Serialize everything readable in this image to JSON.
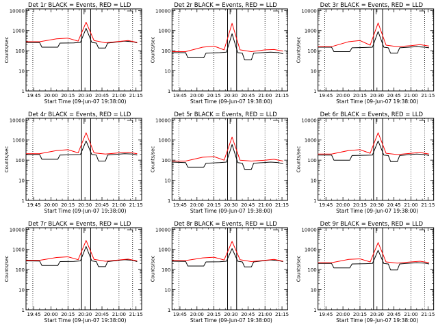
{
  "chart_data": [
    {
      "type": "line",
      "title": "Det 1r BLACK = Events, RED = LLD",
      "xlabel": "Start Time (09-Jun-07 19:38:00)",
      "ylabel": "Counts/sec",
      "yscale": "log",
      "ylim": [
        1,
        12000
      ],
      "xlim": [
        "19:38",
        "21:20"
      ],
      "x_ticks": [
        "19:45",
        "20:00",
        "20:15",
        "20:30",
        "20:45",
        "21:00",
        "21:15"
      ],
      "y_ticks": [
        "1",
        "10",
        "100",
        "1000",
        "10000"
      ],
      "dotted_lines": [
        "19:44",
        "20:15",
        "21:00",
        "21:12"
      ],
      "solid_lines": [
        "20:27",
        "20:35"
      ],
      "flare_peak": "20:31",
      "series": [
        {
          "color": "#000000",
          "x": [
            "19:38",
            "19:50",
            "19:52",
            "20:06",
            "20:08",
            "20:20",
            "20:26",
            "20:31",
            "20:36",
            "20:40",
            "20:42",
            "20:48",
            "20:50",
            "21:05",
            "21:12",
            "21:16"
          ],
          "y": [
            260,
            255,
            150,
            150,
            240,
            245,
            260,
            1300,
            260,
            240,
            135,
            135,
            240,
            300,
            280,
            245
          ]
        },
        {
          "color": "#ff0000",
          "x": [
            "19:38",
            "19:50",
            "20:05",
            "20:15",
            "20:24",
            "20:31",
            "20:38",
            "20:48",
            "21:00",
            "21:08",
            "21:16"
          ],
          "y": [
            280,
            280,
            390,
            420,
            300,
            2600,
            320,
            250,
            290,
            320,
            260
          ]
        }
      ]
    },
    {
      "type": "line",
      "title": "Det 2r BLACK = Events, RED = LLD",
      "xlabel": "Start Time (09-Jun-07 19:38:00)",
      "ylabel": "Counts/sec",
      "yscale": "log",
      "ylim": [
        1,
        12000
      ],
      "xlim": [
        "19:38",
        "21:20"
      ],
      "x_ticks": [
        "19:45",
        "20:00",
        "20:15",
        "20:30",
        "20:45",
        "21:00",
        "21:15"
      ],
      "y_ticks": [
        "1",
        "10",
        "100",
        "1000",
        "10000"
      ],
      "dotted_lines": [
        "19:44",
        "20:15",
        "21:00",
        "21:12"
      ],
      "solid_lines": [
        "20:27",
        "20:35"
      ],
      "flare_peak": "20:31",
      "series": [
        {
          "color": "#000000",
          "x": [
            "19:38",
            "19:50",
            "19:52",
            "20:06",
            "20:08",
            "20:20",
            "20:26",
            "20:31",
            "20:36",
            "20:40",
            "20:42",
            "20:48",
            "20:50",
            "21:05",
            "21:12",
            "21:16"
          ],
          "y": [
            80,
            80,
            45,
            45,
            75,
            80,
            85,
            700,
            80,
            75,
            35,
            35,
            75,
            85,
            80,
            70
          ]
        },
        {
          "color": "#ff0000",
          "x": [
            "19:38",
            "19:50",
            "20:05",
            "20:15",
            "20:24",
            "20:31",
            "20:38",
            "20:48",
            "21:00",
            "21:08",
            "21:16"
          ],
          "y": [
            90,
            90,
            150,
            170,
            110,
            2300,
            110,
            90,
            110,
            115,
            95
          ]
        }
      ]
    },
    {
      "type": "line",
      "title": "Det 3r BLACK = Events, RED = LLD",
      "xlabel": "Start Time (09-Jun-07 19:38:00)",
      "ylabel": "Counts/sec",
      "yscale": "log",
      "ylim": [
        1,
        12000
      ],
      "xlim": [
        "19:38",
        "21:20"
      ],
      "x_ticks": [
        "19:45",
        "20:00",
        "20:15",
        "20:30",
        "20:45",
        "21:00",
        "21:15"
      ],
      "y_ticks": [
        "1",
        "10",
        "100",
        "1000",
        "10000"
      ],
      "dotted_lines": [
        "19:44",
        "20:15",
        "21:00",
        "21:12"
      ],
      "solid_lines": [
        "20:27",
        "20:35"
      ],
      "flare_peak": "20:31",
      "series": [
        {
          "color": "#000000",
          "x": [
            "19:38",
            "19:50",
            "19:52",
            "20:06",
            "20:08",
            "20:20",
            "20:26",
            "20:31",
            "20:36",
            "20:40",
            "20:42",
            "20:48",
            "20:50",
            "21:05",
            "21:12",
            "21:16"
          ],
          "y": [
            150,
            150,
            90,
            90,
            140,
            145,
            150,
            900,
            150,
            140,
            75,
            75,
            140,
            160,
            150,
            140
          ]
        },
        {
          "color": "#ff0000",
          "x": [
            "19:38",
            "19:50",
            "20:05",
            "20:15",
            "20:24",
            "20:31",
            "20:38",
            "20:48",
            "21:00",
            "21:08",
            "21:16"
          ],
          "y": [
            160,
            160,
            280,
            320,
            190,
            2400,
            190,
            160,
            180,
            200,
            170
          ]
        }
      ]
    },
    {
      "type": "line",
      "title": "Det 4r BLACK = Events, RED = LLD",
      "xlabel": "Start Time (09-Jun-07 19:38:00)",
      "ylabel": "Counts/sec",
      "yscale": "log",
      "ylim": [
        1,
        12000
      ],
      "xlim": [
        "19:38",
        "21:20"
      ],
      "x_ticks": [
        "19:45",
        "20:00",
        "20:15",
        "20:30",
        "20:45",
        "21:00",
        "21:15"
      ],
      "y_ticks": [
        "1",
        "10",
        "100",
        "1000",
        "10000"
      ],
      "dotted_lines": [
        "19:44",
        "20:15",
        "21:00",
        "21:12"
      ],
      "solid_lines": [
        "20:27",
        "20:35"
      ],
      "flare_peak": "20:31",
      "series": [
        {
          "color": "#000000",
          "x": [
            "19:38",
            "19:50",
            "19:52",
            "20:06",
            "20:08",
            "20:20",
            "20:26",
            "20:31",
            "20:36",
            "20:40",
            "20:42",
            "20:48",
            "20:50",
            "21:05",
            "21:12",
            "21:16"
          ],
          "y": [
            190,
            190,
            110,
            110,
            180,
            185,
            190,
            900,
            190,
            180,
            90,
            90,
            180,
            210,
            200,
            180
          ]
        },
        {
          "color": "#ff0000",
          "x": [
            "19:38",
            "19:50",
            "20:05",
            "20:15",
            "20:24",
            "20:31",
            "20:38",
            "20:48",
            "21:00",
            "21:08",
            "21:16"
          ],
          "y": [
            210,
            210,
            300,
            330,
            230,
            2300,
            230,
            200,
            230,
            250,
            210
          ]
        }
      ]
    },
    {
      "type": "line",
      "title": "Det 5r BLACK = Events, RED = LLD",
      "xlabel": "Start Time (09-Jun-07 19:38:00)",
      "ylabel": "Counts/sec",
      "yscale": "log",
      "ylim": [
        1,
        12000
      ],
      "xlim": [
        "19:38",
        "21:20"
      ],
      "x_ticks": [
        "19:45",
        "20:00",
        "20:15",
        "20:30",
        "20:45",
        "21:00",
        "21:15"
      ],
      "y_ticks": [
        "1",
        "10",
        "100",
        "1000",
        "10000"
      ],
      "dotted_lines": [
        "19:44",
        "20:15",
        "21:00",
        "21:12"
      ],
      "solid_lines": [
        "20:27",
        "20:35"
      ],
      "flare_peak": "20:31",
      "series": [
        {
          "color": "#000000",
          "x": [
            "19:38",
            "19:50",
            "19:52",
            "20:06",
            "20:08",
            "20:20",
            "20:26",
            "20:31",
            "20:36",
            "20:40",
            "20:42",
            "20:48",
            "20:50",
            "21:05",
            "21:12",
            "21:16"
          ],
          "y": [
            80,
            75,
            45,
            45,
            70,
            75,
            80,
            600,
            75,
            70,
            35,
            35,
            70,
            80,
            75,
            65
          ]
        },
        {
          "color": "#ff0000",
          "x": [
            "19:38",
            "19:50",
            "20:05",
            "20:15",
            "20:24",
            "20:31",
            "20:38",
            "20:48",
            "21:00",
            "21:08",
            "21:16"
          ],
          "y": [
            90,
            90,
            140,
            150,
            100,
            1400,
            100,
            90,
            100,
            110,
            90
          ]
        }
      ]
    },
    {
      "type": "line",
      "title": "Det 6r BLACK = Events, RED = LLD",
      "xlabel": "Start Time (09-Jun-07 19:38:00)",
      "ylabel": "Counts/sec",
      "yscale": "log",
      "ylim": [
        1,
        12000
      ],
      "xlim": [
        "19:38",
        "21:20"
      ],
      "x_ticks": [
        "19:45",
        "20:00",
        "20:15",
        "20:30",
        "20:45",
        "21:00",
        "21:15"
      ],
      "y_ticks": [
        "1",
        "10",
        "100",
        "1000",
        "10000"
      ],
      "dotted_lines": [
        "19:44",
        "20:15",
        "21:00",
        "21:12"
      ],
      "solid_lines": [
        "20:27",
        "20:35"
      ],
      "flare_peak": "20:31",
      "series": [
        {
          "color": "#000000",
          "x": [
            "19:38",
            "19:50",
            "19:52",
            "20:06",
            "20:08",
            "20:20",
            "20:26",
            "20:31",
            "20:36",
            "20:40",
            "20:42",
            "20:48",
            "20:50",
            "21:05",
            "21:12",
            "21:16"
          ],
          "y": [
            180,
            180,
            100,
            100,
            170,
            175,
            180,
            900,
            180,
            170,
            85,
            85,
            170,
            200,
            190,
            170
          ]
        },
        {
          "color": "#ff0000",
          "x": [
            "19:38",
            "19:50",
            "20:05",
            "20:15",
            "20:24",
            "20:31",
            "20:38",
            "20:48",
            "21:00",
            "21:08",
            "21:16"
          ],
          "y": [
            200,
            200,
            300,
            330,
            220,
            2300,
            220,
            190,
            220,
            240,
            200
          ]
        }
      ]
    },
    {
      "type": "line",
      "title": "Det 7r BLACK = Events, RED = LLD",
      "xlabel": "Start Time (09-Jun-07 19:38:00)",
      "ylabel": "Counts/sec",
      "yscale": "log",
      "ylim": [
        1,
        12000
      ],
      "xlim": [
        "19:38",
        "21:20"
      ],
      "x_ticks": [
        "19:45",
        "20:00",
        "20:15",
        "20:30",
        "20:45",
        "21:00",
        "21:15"
      ],
      "y_ticks": [
        "1",
        "10",
        "100",
        "1000",
        "10000"
      ],
      "dotted_lines": [
        "19:44",
        "20:15",
        "21:00",
        "21:12"
      ],
      "solid_lines": [
        "20:27",
        "20:35"
      ],
      "flare_peak": "20:31",
      "series": [
        {
          "color": "#000000",
          "x": [
            "19:38",
            "19:50",
            "19:52",
            "20:06",
            "20:08",
            "20:20",
            "20:26",
            "20:31",
            "20:36",
            "20:40",
            "20:42",
            "20:48",
            "20:50",
            "21:05",
            "21:12",
            "21:16"
          ],
          "y": [
            270,
            265,
            160,
            160,
            250,
            255,
            270,
            1400,
            270,
            250,
            140,
            140,
            250,
            310,
            290,
            250
          ]
        },
        {
          "color": "#ff0000",
          "x": [
            "19:38",
            "19:50",
            "20:05",
            "20:15",
            "20:24",
            "20:31",
            "20:38",
            "20:48",
            "21:00",
            "21:08",
            "21:16"
          ],
          "y": [
            290,
            290,
            400,
            430,
            310,
            2800,
            320,
            260,
            300,
            330,
            270
          ]
        }
      ]
    },
    {
      "type": "line",
      "title": "Det 8r BLACK = Events, RED = LLD",
      "xlabel": "Start Time (09-Jun-07 19:38:00)",
      "ylabel": "Counts/sec",
      "yscale": "log",
      "ylim": [
        1,
        12000
      ],
      "xlim": [
        "19:38",
        "21:20"
      ],
      "x_ticks": [
        "19:45",
        "20:00",
        "20:15",
        "20:30",
        "20:45",
        "21:00",
        "21:15"
      ],
      "y_ticks": [
        "1",
        "10",
        "100",
        "1000",
        "10000"
      ],
      "dotted_lines": [
        "19:44",
        "20:15",
        "21:00",
        "21:12"
      ],
      "solid_lines": [
        "20:27",
        "20:35"
      ],
      "flare_peak": "20:31",
      "series": [
        {
          "color": "#000000",
          "x": [
            "19:38",
            "19:50",
            "19:52",
            "20:06",
            "20:08",
            "20:20",
            "20:26",
            "20:31",
            "20:36",
            "20:40",
            "20:42",
            "20:48",
            "20:50",
            "21:05",
            "21:12",
            "21:16"
          ],
          "y": [
            260,
            255,
            150,
            150,
            240,
            245,
            260,
            1100,
            260,
            240,
            135,
            135,
            240,
            300,
            280,
            245
          ]
        },
        {
          "color": "#ff0000",
          "x": [
            "19:38",
            "19:50",
            "20:05",
            "20:15",
            "20:24",
            "20:31",
            "20:38",
            "20:48",
            "21:00",
            "21:08",
            "21:16"
          ],
          "y": [
            280,
            280,
            380,
            410,
            300,
            2500,
            310,
            250,
            290,
            320,
            260
          ]
        }
      ]
    },
    {
      "type": "line",
      "title": "Det 9r BLACK = Events, RED = LLD",
      "xlabel": "Start Time (09-Jun-07 19:38:00)",
      "ylabel": "Counts/sec",
      "yscale": "log",
      "ylim": [
        1,
        12000
      ],
      "xlim": [
        "19:38",
        "21:20"
      ],
      "x_ticks": [
        "19:45",
        "20:00",
        "20:15",
        "20:30",
        "20:45",
        "21:00",
        "21:15"
      ],
      "y_ticks": [
        "1",
        "10",
        "100",
        "1000",
        "10000"
      ],
      "dotted_lines": [
        "19:44",
        "20:15",
        "21:00",
        "21:12"
      ],
      "solid_lines": [
        "20:27",
        "20:35"
      ],
      "flare_peak": "20:31",
      "series": [
        {
          "color": "#000000",
          "x": [
            "19:38",
            "19:50",
            "19:52",
            "20:06",
            "20:08",
            "20:20",
            "20:26",
            "20:31",
            "20:36",
            "20:40",
            "20:42",
            "20:48",
            "20:50",
            "21:05",
            "21:12",
            "21:16"
          ],
          "y": [
            200,
            200,
            120,
            120,
            190,
            195,
            200,
            900,
            200,
            190,
            95,
            95,
            190,
            220,
            210,
            190
          ]
        },
        {
          "color": "#ff0000",
          "x": [
            "19:38",
            "19:50",
            "20:05",
            "20:15",
            "20:24",
            "20:31",
            "20:38",
            "20:48",
            "21:00",
            "21:08",
            "21:16"
          ],
          "y": [
            220,
            220,
            320,
            340,
            240,
            2200,
            240,
            210,
            240,
            260,
            220
          ]
        }
      ]
    }
  ]
}
